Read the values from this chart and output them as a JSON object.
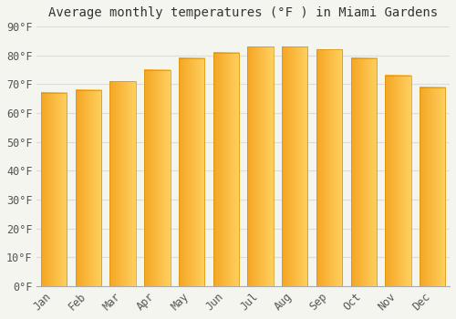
{
  "title": "Average monthly temperatures (°F ) in Miami Gardens",
  "months": [
    "Jan",
    "Feb",
    "Mar",
    "Apr",
    "May",
    "Jun",
    "Jul",
    "Aug",
    "Sep",
    "Oct",
    "Nov",
    "Dec"
  ],
  "temps": [
    67,
    68,
    71,
    75,
    79,
    81,
    83,
    83,
    82,
    79,
    73,
    69
  ],
  "ylim": [
    0,
    90
  ],
  "yticks": [
    0,
    10,
    20,
    30,
    40,
    50,
    60,
    70,
    80,
    90
  ],
  "bar_color_dark": "#F5A623",
  "bar_color_light": "#FFD060",
  "bar_edge_color": "#D4920A",
  "background_color": "#F5F5F0",
  "grid_color": "#DDDDDD",
  "title_fontsize": 10,
  "tick_fontsize": 8.5
}
